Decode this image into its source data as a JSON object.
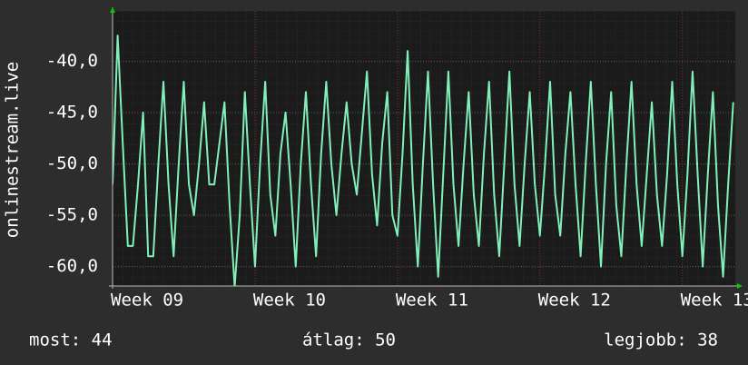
{
  "chart_data": {
    "type": "line",
    "ylabel": "onlinestream.live",
    "x": [
      0,
      0.25,
      0.5,
      0.75,
      1,
      1.25,
      1.5,
      1.75,
      2,
      2.25,
      2.5,
      2.75,
      3,
      3.25,
      3.5,
      3.75,
      4,
      4.25,
      4.5,
      4.75,
      5,
      5.25,
      5.5,
      5.75,
      6,
      6.25,
      6.5,
      6.75,
      7,
      7.25,
      7.5,
      7.75,
      8,
      8.25,
      8.5,
      8.75,
      9,
      9.25,
      9.5,
      9.75,
      10,
      10.25,
      10.5,
      10.75,
      11,
      11.25,
      11.5,
      11.75,
      12,
      12.25,
      12.5,
      12.75,
      13,
      13.25,
      13.5,
      13.75,
      14,
      14.25,
      14.5,
      14.75,
      15,
      15.25,
      15.5,
      15.75,
      16,
      16.25,
      16.5,
      16.75,
      17,
      17.25,
      17.5,
      17.75,
      18,
      18.25,
      18.5,
      18.75,
      19,
      19.25,
      19.5,
      19.75,
      20,
      20.25,
      20.5,
      20.75,
      21,
      21.25,
      21.5,
      21.75,
      22,
      22.25,
      22.5,
      22.75,
      23,
      23.25,
      23.5,
      23.75,
      24,
      24.25,
      24.5,
      24.75,
      25,
      25.25,
      25.5,
      25.75,
      26,
      26.25,
      26.5,
      26.75,
      27,
      27.25,
      27.5,
      27.75,
      28,
      28.25,
      28.5,
      28.75,
      29,
      29.25,
      29.5,
      29.75,
      30,
      30.25,
      30.5
    ],
    "series": [
      {
        "color": "#80f0b8",
        "values": [
          -52,
          -37.5,
          -48,
          -58,
          -58,
          -52,
          -45,
          -59,
          -59,
          -50,
          -42,
          -52,
          -59,
          -50,
          -42,
          -52,
          -55,
          -50,
          -44,
          -52,
          -52,
          -48,
          -44,
          -54,
          -62,
          -55,
          -43,
          -52,
          -60,
          -50,
          -42,
          -53,
          -57,
          -49,
          -45,
          -52,
          -60,
          -50,
          -43,
          -52,
          -59,
          -49,
          -42,
          -50,
          -55,
          -49,
          -44,
          -50,
          -53,
          -47,
          -41,
          -51,
          -56,
          -48,
          -43,
          -55,
          -57,
          -49,
          -39,
          -52,
          -60,
          -50,
          -41,
          -52,
          -61,
          -51,
          -41,
          -52,
          -58,
          -50,
          -43,
          -53,
          -58,
          -49,
          -42,
          -53,
          -59,
          -50,
          -41,
          -52,
          -58,
          -50,
          -43,
          -52,
          -57,
          -50,
          -42,
          -53,
          -57,
          -49,
          -43,
          -52,
          -59,
          -50,
          -42,
          -52,
          -60,
          -50,
          -43,
          -54,
          -59,
          -50,
          -42,
          -52,
          -58,
          -51,
          -44,
          -53,
          -58,
          -51,
          -42,
          -52,
          -59,
          -51,
          -41,
          -51,
          -60,
          -51,
          -43,
          -54,
          -61,
          -52,
          -44
        ]
      }
    ],
    "xlim": [
      0,
      30.6
    ],
    "xticks": [
      {
        "value": 0,
        "label": "Week 09"
      },
      {
        "value": 7,
        "label": "Week 10"
      },
      {
        "value": 14,
        "label": "Week 11"
      },
      {
        "value": 21,
        "label": "Week 12"
      },
      {
        "value": 28,
        "label": "Week 13"
      }
    ],
    "ylim": [
      -61.9,
      -35.1
    ],
    "yticks": [
      {
        "value": -40,
        "label": "-40,0"
      },
      {
        "value": -45,
        "label": "-45,0"
      },
      {
        "value": -50,
        "label": "-50,0"
      },
      {
        "value": -55,
        "label": "-55,0"
      },
      {
        "value": -60,
        "label": "-60,0"
      }
    ],
    "grid": true,
    "annotations": [
      "most: 44",
      "átlag: 50",
      "legjobb: 38"
    ]
  }
}
